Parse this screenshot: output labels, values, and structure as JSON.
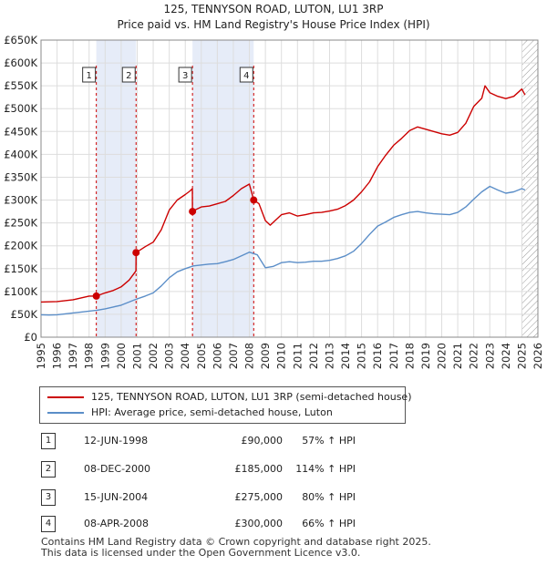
{
  "title_line1": "125, TENNYSON ROAD, LUTON, LU1 3RP",
  "title_line2": "Price paid vs. HM Land Registry's House Price Index (HPI)",
  "chart_data": {
    "type": "line",
    "xlim": [
      1995,
      2026
    ],
    "ylim": [
      0,
      650000
    ],
    "x_ticks": [
      1995,
      1996,
      1997,
      1998,
      1999,
      2000,
      2001,
      2002,
      2003,
      2004,
      2005,
      2006,
      2007,
      2008,
      2009,
      2010,
      2011,
      2012,
      2013,
      2014,
      2015,
      2016,
      2017,
      2018,
      2019,
      2020,
      2021,
      2022,
      2023,
      2024,
      2025,
      2026
    ],
    "y_ticks": [
      0,
      50000,
      100000,
      150000,
      200000,
      250000,
      300000,
      350000,
      400000,
      450000,
      500000,
      550000,
      600000,
      650000
    ],
    "y_tick_labels": [
      "£0",
      "£50K",
      "£100K",
      "£150K",
      "£200K",
      "£250K",
      "£300K",
      "£350K",
      "£400K",
      "£450K",
      "£500K",
      "£550K",
      "£600K",
      "£650K"
    ],
    "grid": true,
    "shaded_ranges": [
      [
        1998.45,
        2000.93
      ],
      [
        2004.45,
        2008.27
      ]
    ],
    "hatched_range": [
      2025.0,
      2026.0
    ],
    "series": [
      {
        "name": "125, TENNYSON ROAD, LUTON, LU1 3RP (semi-detached house)",
        "color": "#cc0000",
        "x": [
          1995.0,
          1996.0,
          1996.5,
          1997.0,
          1997.5,
          1998.0,
          1998.45,
          1999.0,
          1999.5,
          2000.0,
          2000.5,
          2000.92,
          2000.93,
          2001.5,
          2002.0,
          2002.5,
          2003.0,
          2003.5,
          2004.0,
          2004.3,
          2004.44,
          2004.45,
          2004.7,
          2005.0,
          2005.5,
          2006.0,
          2006.5,
          2007.0,
          2007.5,
          2008.0,
          2008.27,
          2008.6,
          2009.0,
          2009.3,
          2009.6,
          2010.0,
          2010.5,
          2011.0,
          2011.5,
          2012.0,
          2012.5,
          2013.0,
          2013.5,
          2014.0,
          2014.5,
          2015.0,
          2015.5,
          2016.0,
          2016.5,
          2017.0,
          2017.5,
          2018.0,
          2018.5,
          2019.0,
          2019.5,
          2020.0,
          2020.5,
          2021.0,
          2021.5,
          2022.0,
          2022.5,
          2022.7,
          2023.0,
          2023.5,
          2024.0,
          2024.5,
          2025.0,
          2025.2
        ],
        "values": [
          77000,
          78000,
          80000,
          82000,
          86000,
          90000,
          90000,
          97000,
          102000,
          110000,
          125000,
          145000,
          185000,
          198000,
          208000,
          235000,
          278000,
          300000,
          312000,
          320000,
          325000,
          275000,
          280000,
          285000,
          287000,
          292000,
          297000,
          310000,
          325000,
          335000,
          300000,
          292000,
          255000,
          245000,
          255000,
          268000,
          272000,
          265000,
          268000,
          272000,
          273000,
          276000,
          280000,
          288000,
          300000,
          318000,
          340000,
          373000,
          398000,
          420000,
          435000,
          452000,
          460000,
          455000,
          450000,
          445000,
          442000,
          448000,
          468000,
          505000,
          523000,
          550000,
          535000,
          527000,
          522000,
          527000,
          543000,
          530000
        ]
      },
      {
        "name": "HPI: Average price, semi-detached house, Luton",
        "color": "#5b8ec8",
        "x": [
          1995.0,
          1995.5,
          1996.0,
          1996.5,
          1997.0,
          1997.5,
          1998.0,
          1998.5,
          1999.0,
          1999.5,
          2000.0,
          2000.5,
          2001.0,
          2001.5,
          2002.0,
          2002.5,
          2003.0,
          2003.5,
          2004.0,
          2004.5,
          2005.0,
          2005.5,
          2006.0,
          2006.5,
          2007.0,
          2007.5,
          2008.0,
          2008.5,
          2009.0,
          2009.5,
          2010.0,
          2010.5,
          2011.0,
          2011.5,
          2012.0,
          2012.5,
          2013.0,
          2013.5,
          2014.0,
          2014.5,
          2015.0,
          2015.5,
          2016.0,
          2016.5,
          2017.0,
          2017.5,
          2018.0,
          2018.5,
          2019.0,
          2019.5,
          2020.0,
          2020.5,
          2021.0,
          2021.5,
          2022.0,
          2022.5,
          2023.0,
          2023.5,
          2024.0,
          2024.5,
          2025.0,
          2025.2
        ],
        "values": [
          49000,
          48500,
          49000,
          51000,
          53000,
          55000,
          57000,
          59000,
          62000,
          66000,
          70000,
          77000,
          84000,
          90000,
          97000,
          112000,
          130000,
          143000,
          150000,
          156000,
          158000,
          160000,
          161000,
          165000,
          170000,
          178000,
          186000,
          180000,
          152000,
          155000,
          163000,
          165000,
          163000,
          164000,
          166000,
          166000,
          168000,
          172000,
          178000,
          188000,
          205000,
          225000,
          243000,
          252000,
          262000,
          268000,
          273000,
          275000,
          272000,
          270000,
          269000,
          268000,
          273000,
          285000,
          302000,
          318000,
          330000,
          322000,
          315000,
          318000,
          325000,
          322000
        ]
      }
    ],
    "sales": [
      {
        "marker": "1",
        "x": 1998.45,
        "y": 90000
      },
      {
        "marker": "2",
        "x": 2000.93,
        "y": 185000
      },
      {
        "marker": "3",
        "x": 2004.45,
        "y": 275000
      },
      {
        "marker": "4",
        "x": 2008.27,
        "y": 300000
      }
    ]
  },
  "legend": {
    "series1": "125, TENNYSON ROAD, LUTON, LU1 3RP (semi-detached house)",
    "series2": "HPI: Average price, semi-detached house, Luton",
    "series1_color": "#cc0000",
    "series2_color": "#5b8ec8"
  },
  "sales_table": [
    {
      "marker": "1",
      "date": "12-JUN-1998",
      "price": "£90,000",
      "hpi": "57% ↑ HPI"
    },
    {
      "marker": "2",
      "date": "08-DEC-2000",
      "price": "£185,000",
      "hpi": "114% ↑ HPI"
    },
    {
      "marker": "3",
      "date": "15-JUN-2004",
      "price": "£275,000",
      "hpi": "80% ↑ HPI"
    },
    {
      "marker": "4",
      "date": "08-APR-2008",
      "price": "£300,000",
      "hpi": "66% ↑ HPI"
    }
  ],
  "footer_line1": "Contains HM Land Registry data © Crown copyright and database right 2025.",
  "footer_line2": "This data is licensed under the Open Government Licence v3.0."
}
